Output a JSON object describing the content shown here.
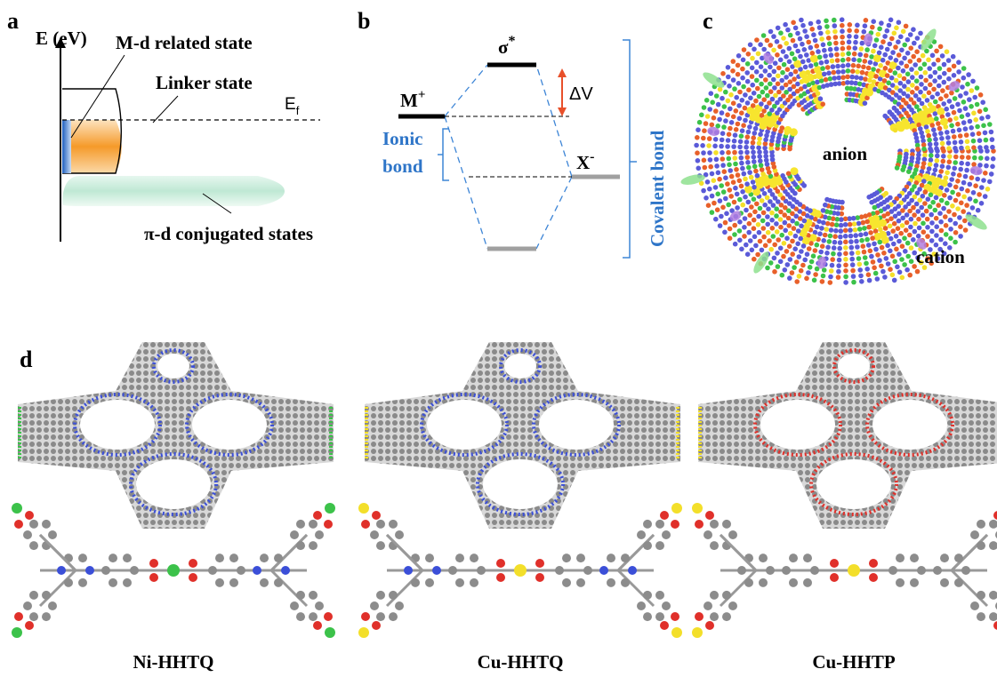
{
  "panels": {
    "a": {
      "label": "a",
      "axis_label": "E (eV)",
      "md_state": "M-d related state",
      "linker_state": "Linker state",
      "fermi": {
        "base": "E",
        "sub": "f"
      },
      "conjugated": "π-d conjugated states"
    },
    "b": {
      "label": "b",
      "antibonding": {
        "base": "σ",
        "sup": "*"
      },
      "metal": {
        "base": "M",
        "sup": "+"
      },
      "gap": "ΔV",
      "ionic": [
        "Ionic",
        "bond"
      ],
      "anion": {
        "base": "X",
        "sup": "-"
      },
      "covalent": "Covalent bond"
    },
    "c": {
      "label": "c",
      "anion": "anion",
      "cation": "cation"
    },
    "d": {
      "label": "d",
      "materials": [
        "Ni-HHTQ",
        "Cu-HHTQ",
        "Cu-HHTP"
      ]
    }
  }
}
